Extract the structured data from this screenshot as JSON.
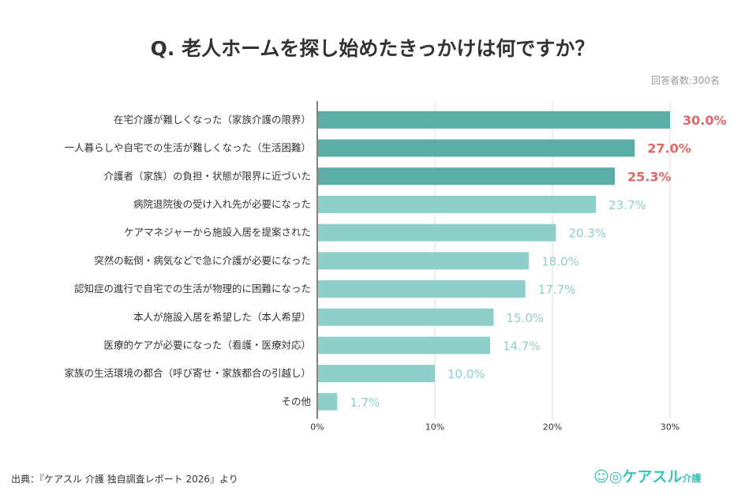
{
  "title": "Q. 老人ホームを探し始めたきっかけは何ですか？",
  "respondents": "回答者数:300名",
  "source": "出典：『ケアスル 介護 独自調査レポート 2026』より",
  "logo": {
    "main": "ケアスル",
    "sub": "介護"
  },
  "colors": {
    "dark_bar": "#5aaea5",
    "light_bar": "#8fcfca",
    "highlight_label": "#e06666",
    "normal_label": "#8fcfca"
  },
  "chart_data": {
    "type": "bar",
    "orientation": "horizontal",
    "categories": [
      "在宅介護が難しくなった（家族介護の限界）",
      "一人暮らしや自宅での生活が難しくなった（生活困難）",
      "介護者（家族）の負担・状態が限界に近づいた",
      "病院退院後の受け入れ先が必要になった",
      "ケアマネジャーから施設入居を提案された",
      "突然の転倒・病気などで急に介護が必要になった",
      "認知症の進行で自宅での生活が物理的に困難になった",
      "本人が施設入居を希望した（本人希望）",
      "医療的ケアが必要になった（看護・医療対応）",
      "家族の生活環境の都合（呼び寄せ・家族都合の引越し）",
      "その他"
    ],
    "values": [
      30.0,
      27.0,
      25.3,
      23.7,
      20.3,
      18.0,
      17.7,
      15.0,
      14.7,
      10.0,
      1.7
    ],
    "data_labels": [
      "30.0%",
      "27.0%",
      "25.3%",
      "23.7%",
      "20.3%",
      "18.0%",
      "17.7%",
      "15.0%",
      "14.7%",
      "10.0%",
      "1.7%"
    ],
    "highlighted_count": 3,
    "xlim": [
      0,
      30
    ],
    "xticks": [
      "0%",
      "10%",
      "20%",
      "30%"
    ],
    "xtick_values": [
      0,
      10,
      20,
      30
    ],
    "grid": true
  }
}
